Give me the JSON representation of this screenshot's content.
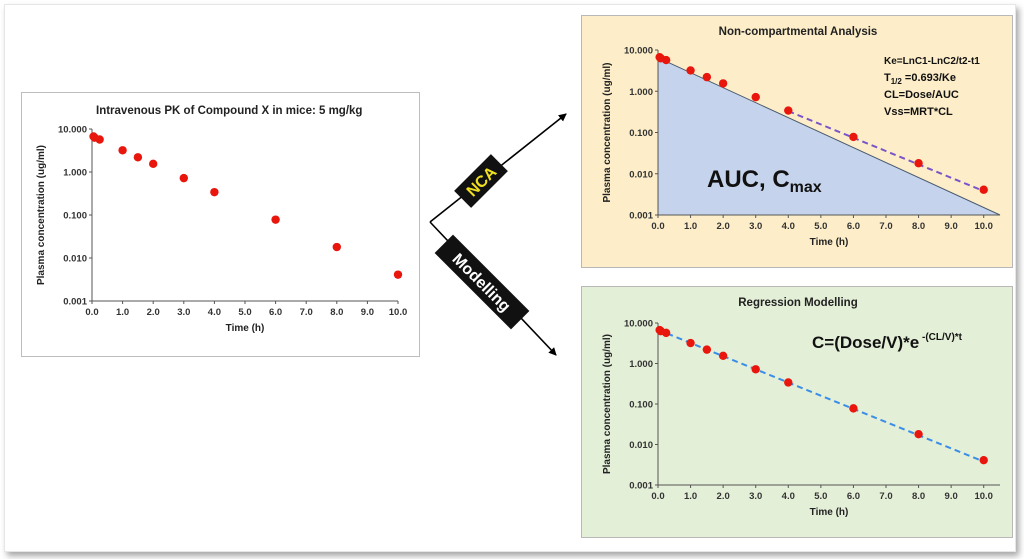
{
  "arrows": {
    "nca_label": "NCA",
    "modelling_label": "Modelling",
    "label_bg": "#111111",
    "nca_text_color": "#f0e020",
    "modelling_text_color": "#ffffff"
  },
  "colors": {
    "points": "#e8160c",
    "nca_fit_line": "#7a55c8",
    "regression_line": "#3a8ee8",
    "auc_fill": "#c5d4ec",
    "nca_panel_bg": "#fdeec9",
    "regression_panel_bg": "#e4efd8"
  },
  "chart_data": [
    {
      "id": "left",
      "type": "scatter",
      "title": "Intravenous PK of Compound  X in mice:  5  mg/kg",
      "xlabel": "Time (h)",
      "ylabel": "Plasma concentration (ug/ml)",
      "xlim": [
        0,
        10
      ],
      "ylim": [
        0.001,
        10
      ],
      "yscale": "log",
      "xticks": [
        "0.0",
        "1.0",
        "2.0",
        "3.0",
        "4.0",
        "5.0",
        "6.0",
        "7.0",
        "8.0",
        "9.0",
        "10.0"
      ],
      "yticks": [
        "10.000",
        "1.000",
        "0.100",
        "0.010",
        "0.001"
      ],
      "grid": false,
      "x": [
        0.05,
        0.083,
        0.25,
        1,
        1.5,
        2,
        3,
        4,
        6,
        8,
        10
      ],
      "y": [
        6.7,
        6.3,
        5.7,
        3.2,
        2.2,
        1.55,
        0.72,
        0.34,
        0.078,
        0.018,
        0.0041
      ]
    },
    {
      "id": "nca",
      "type": "scatter",
      "title": "Non-compartmental Analysis",
      "xlabel": "Time (h)",
      "ylabel": "Plasma concentration (ug/ml)",
      "xlim": [
        0,
        10.5
      ],
      "ylim": [
        0.001,
        10
      ],
      "yscale": "log",
      "xticks": [
        "0.0",
        "1.0",
        "2.0",
        "3.0",
        "4.0",
        "5.0",
        "6.0",
        "7.0",
        "8.0",
        "9.0",
        "10.0"
      ],
      "yticks": [
        "10.000",
        "1.000",
        "0.100",
        "0.010",
        "0.001"
      ],
      "grid": false,
      "x": [
        0.05,
        0.083,
        0.25,
        1,
        1.5,
        2,
        3,
        4,
        6,
        8,
        10
      ],
      "y": [
        6.7,
        6.3,
        5.7,
        3.2,
        2.2,
        1.55,
        0.72,
        0.34,
        0.078,
        0.018,
        0.0041
      ],
      "auc_line": {
        "x": [
          0,
          10.5
        ],
        "y": [
          6.5,
          0.001
        ]
      },
      "terminal_fit": {
        "x": [
          4,
          10
        ],
        "y": [
          0.33,
          0.0038
        ]
      },
      "annotations": {
        "ke": "Ke=LnC1-LnC2/t2-t1",
        "half_life_main": "T",
        "half_life_sub": "1/2",
        "half_life_rest": " =0.693/Ke",
        "cl": "CL=Dose/AUC",
        "vss": "Vss=MRT*CL",
        "auc_main": "AUC, C",
        "auc_sub": "max"
      }
    },
    {
      "id": "regression",
      "type": "scatter",
      "title": "Regression Modelling",
      "xlabel": "Time (h)",
      "ylabel": "Plasma concentration (ug/ml)",
      "xlim": [
        0,
        10.5
      ],
      "ylim": [
        0.001,
        10
      ],
      "yscale": "log",
      "xticks": [
        "0.0",
        "1.0",
        "2.0",
        "3.0",
        "4.0",
        "5.0",
        "6.0",
        "7.0",
        "8.0",
        "9.0",
        "10.0"
      ],
      "yticks": [
        "10.000",
        "1.000",
        "0.100",
        "0.010",
        "0.001"
      ],
      "grid": false,
      "x": [
        0.05,
        0.083,
        0.25,
        1,
        1.5,
        2,
        3,
        4,
        6,
        8,
        10
      ],
      "y": [
        6.7,
        6.3,
        5.7,
        3.2,
        2.2,
        1.55,
        0.72,
        0.34,
        0.078,
        0.018,
        0.0041
      ],
      "fit": {
        "x": [
          0,
          10
        ],
        "y": [
          6.8,
          0.0038
        ]
      },
      "annotations": {
        "equation_main": "C=(Dose/V)*e",
        "equation_sup": " -(CL/V)*t"
      }
    }
  ]
}
